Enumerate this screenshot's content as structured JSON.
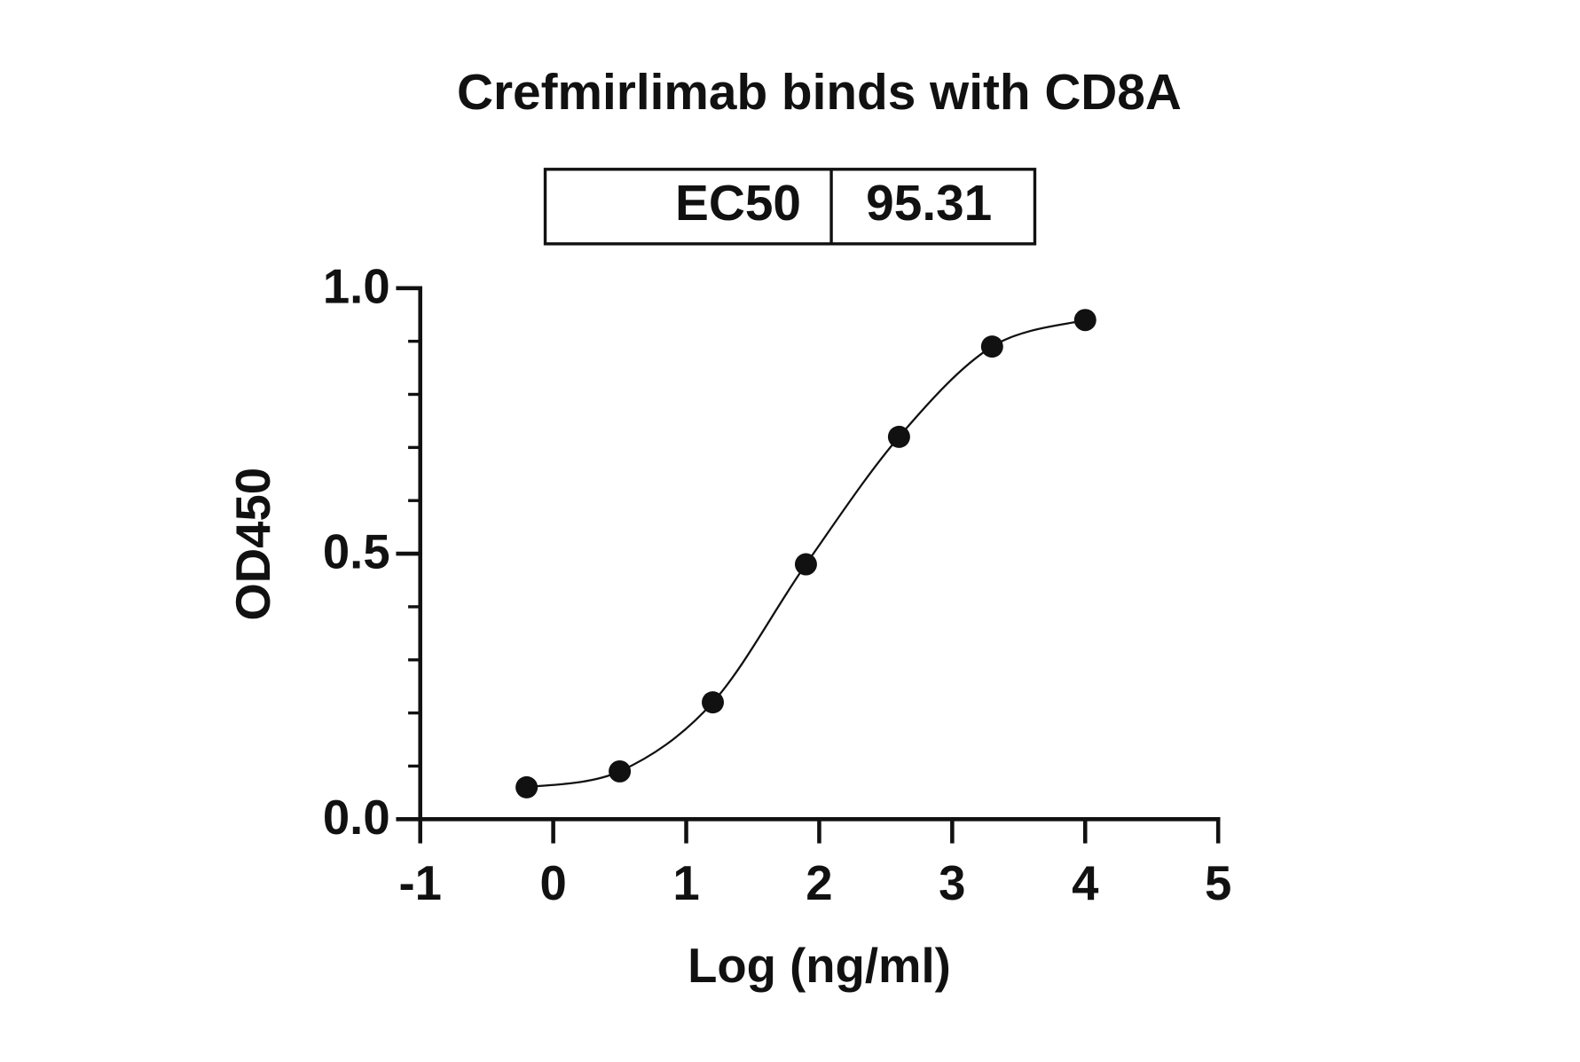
{
  "chart_data": {
    "type": "scatter",
    "title": "Crefmirlimab binds with CD8A",
    "ec50_table": {
      "label": "EC50",
      "value": 95.31
    },
    "x_label": "Log (ng/ml)",
    "y_label": "OD450",
    "series": [
      {
        "name": "CD8A",
        "color": "#111111",
        "x": [
          -0.2,
          0.5,
          1.2,
          1.9,
          2.6,
          3.3,
          4.0
        ],
        "values": [
          0.06,
          0.09,
          0.22,
          0.48,
          0.72,
          0.89,
          0.94
        ]
      }
    ],
    "fit_line": true,
    "xlim": [
      -1,
      5
    ],
    "xticks": [
      -1,
      0,
      1,
      2,
      3,
      4,
      5
    ],
    "ylim": [
      0,
      1
    ],
    "yticks": [
      {
        "value": 0,
        "label": "0.0"
      },
      {
        "value": 0.5,
        "label": "0.5"
      },
      {
        "value": 1,
        "label": "1.0"
      }
    ],
    "y_minor_ticks": [
      0.1,
      0.2,
      0.3,
      0.4,
      0.6,
      0.7,
      0.8,
      0.9
    ],
    "grid": false
  }
}
